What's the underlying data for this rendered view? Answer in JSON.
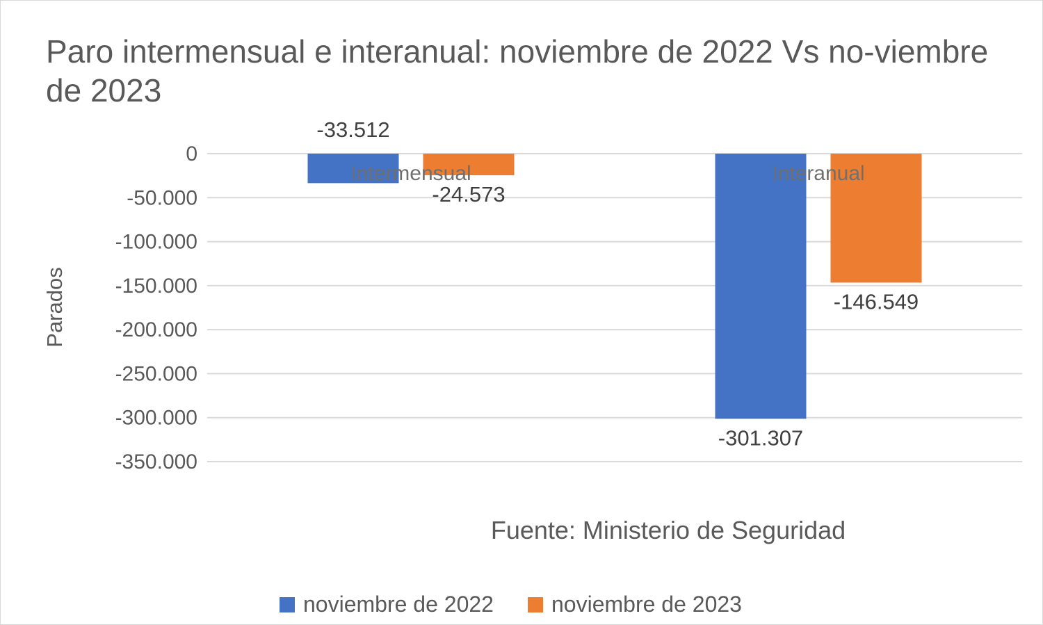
{
  "chart_data": {
    "type": "bar",
    "title": "Paro intermensual e interanual: noviembre de 2022 Vs no-viembre de 2023",
    "ylabel": "Parados",
    "xlabel": "",
    "categories": [
      "Intermensual",
      "Interanual"
    ],
    "series": [
      {
        "name": "noviembre de 2022",
        "color": "#4472C4",
        "values": [
          -33512,
          -301307
        ],
        "labels": [
          "-33.512",
          "-301.307"
        ]
      },
      {
        "name": "noviembre de 2023",
        "color": "#ED7D31",
        "values": [
          -24573,
          -146549
        ],
        "labels": [
          "-24.573",
          "-146.549"
        ]
      }
    ],
    "ylim": [
      -350000,
      0
    ],
    "yticks": [
      0,
      -50000,
      -100000,
      -150000,
      -200000,
      -250000,
      -300000,
      -350000
    ],
    "ytick_labels": [
      "0",
      "-50.000",
      "-100.000",
      "-150.000",
      "-200.000",
      "-250.000",
      "-300.000",
      "-350.000"
    ],
    "grid": true,
    "legend_position": "bottom",
    "annotation": "Fuente: Ministerio de Seguridad"
  }
}
